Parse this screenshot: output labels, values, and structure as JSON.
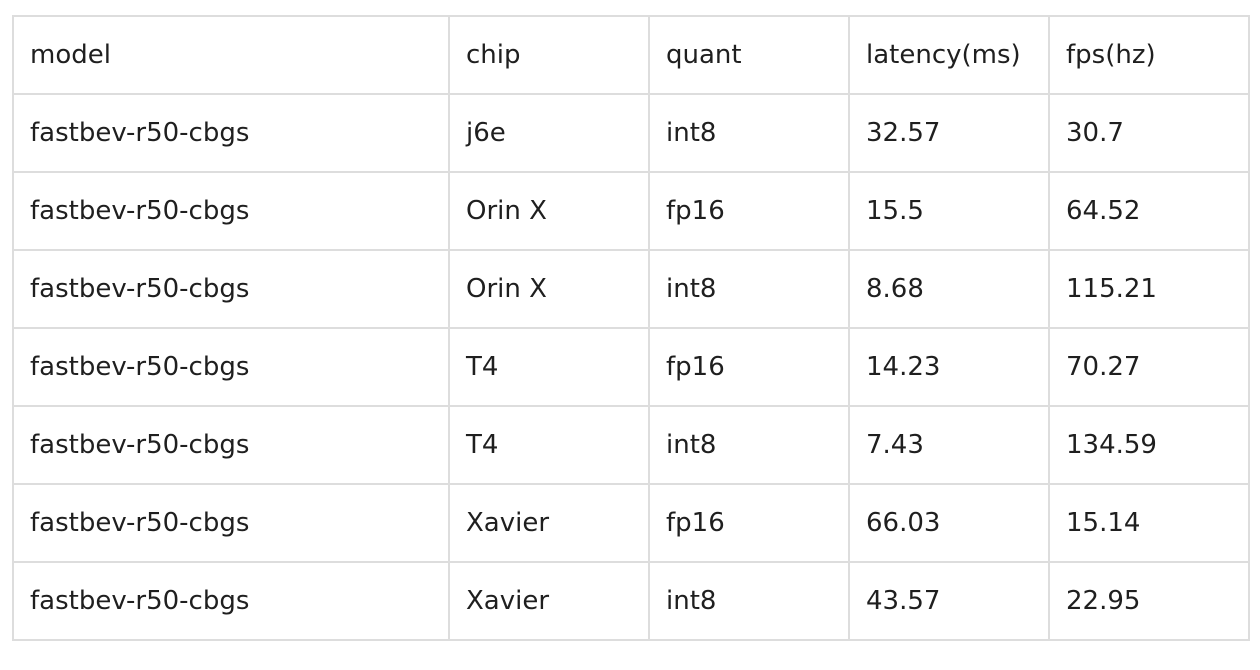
{
  "table": {
    "headers": [
      "model",
      "chip",
      "quant",
      "latency(ms)",
      "fps(hz)"
    ],
    "rows": [
      [
        "fastbev-r50-cbgs",
        "j6e",
        "int8",
        "32.57",
        "30.7"
      ],
      [
        "fastbev-r50-cbgs",
        "Orin X",
        "fp16",
        "15.5",
        "64.52"
      ],
      [
        "fastbev-r50-cbgs",
        "Orin X",
        "int8",
        "8.68",
        "115.21"
      ],
      [
        "fastbev-r50-cbgs",
        "T4",
        "fp16",
        "14.23",
        "70.27"
      ],
      [
        "fastbev-r50-cbgs",
        "T4",
        "int8",
        "7.43",
        "134.59"
      ],
      [
        "fastbev-r50-cbgs",
        "Xavier",
        "fp16",
        "66.03",
        "15.14"
      ],
      [
        "fastbev-r50-cbgs",
        "Xavier",
        "int8",
        "43.57",
        "22.95"
      ]
    ]
  }
}
